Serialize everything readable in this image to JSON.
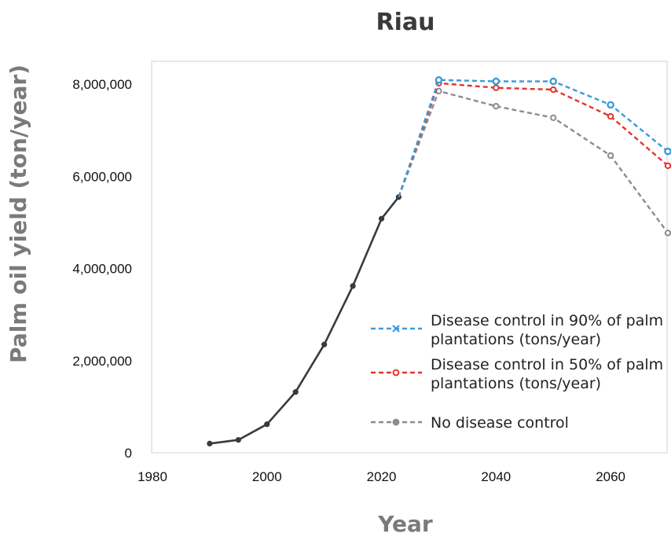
{
  "chart_data": {
    "type": "line",
    "title": "Riau",
    "xlabel": "Year",
    "ylabel": "Palm oil yield (ton/year)",
    "xlim": [
      1980,
      2070
    ],
    "ylim": [
      0,
      8500000
    ],
    "x_ticks": [
      1980,
      2000,
      2020,
      2040,
      2060
    ],
    "x_tick_labels": [
      "1980",
      "2000",
      "2020",
      "2040",
      "2060"
    ],
    "y_ticks": [
      0,
      2000000,
      4000000,
      6000000,
      8000000
    ],
    "y_tick_labels": [
      "0",
      "2,000,000",
      "4,000,000",
      "6,000,000",
      "8,000,000"
    ],
    "grid": false,
    "legend_position": "lower-right",
    "series": [
      {
        "key": "historical",
        "color": "#3a3a3a",
        "dashed": false,
        "marker": "dot",
        "x": [
          1990,
          1995,
          2000,
          2005,
          2010,
          2015,
          2020,
          2023
        ],
        "y": [
          200000,
          280000,
          620000,
          1320000,
          2350000,
          3620000,
          5080000,
          5550000
        ]
      },
      {
        "key": "no_control",
        "name": "No disease control",
        "color": "#8c8c8c",
        "dashed": true,
        "marker": "circle",
        "x": [
          2023,
          2030,
          2040,
          2050,
          2060,
          2070
        ],
        "y": [
          5550000,
          7850000,
          7520000,
          7270000,
          6450000,
          4770000
        ]
      },
      {
        "key": "control_50",
        "name": "Disease control in 50% of palm plantations (tons/year)",
        "name_lines": [
          "Disease control in 50% of palm",
          "plantations (tons/year)"
        ],
        "color": "#e3342f",
        "dashed": true,
        "marker": "open-circle",
        "x": [
          2023,
          2030,
          2040,
          2050,
          2060,
          2070
        ],
        "y": [
          5550000,
          8020000,
          7920000,
          7880000,
          7300000,
          6230000
        ]
      },
      {
        "key": "control_90",
        "name": "Disease control in 90% of palm plantations (tons/year)",
        "name_lines": [
          "Disease control in 90% of palm",
          "plantations (tons/year)"
        ],
        "color": "#3d9bd8",
        "dashed": true,
        "marker": "x",
        "x": [
          2023,
          2030,
          2040,
          2050,
          2060,
          2070
        ],
        "y": [
          5550000,
          8090000,
          8060000,
          8060000,
          7550000,
          6540000
        ]
      }
    ],
    "legend_order": [
      "control_90",
      "control_50",
      "no_control"
    ]
  }
}
